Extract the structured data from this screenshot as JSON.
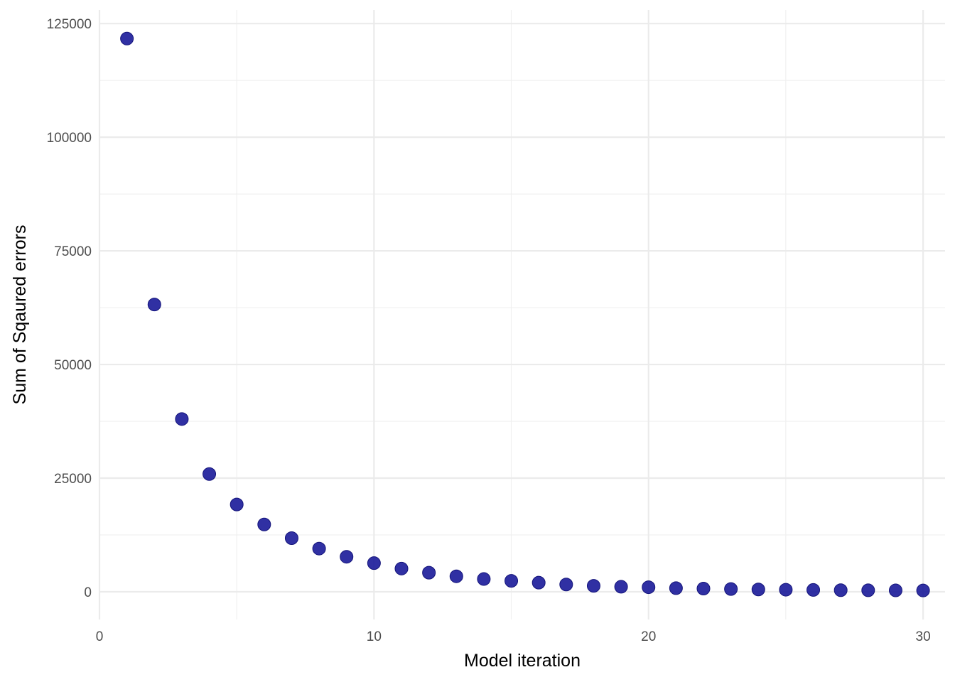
{
  "chart_data": {
    "type": "scatter",
    "title": "",
    "xlabel": "Model iteration",
    "ylabel": "Sum of Sqaured errors",
    "xlim": [
      0,
      30.8
    ],
    "ylim": [
      -6100,
      128000
    ],
    "x_ticks": [
      {
        "value": 0,
        "label": "0"
      },
      {
        "value": 10,
        "label": "10"
      },
      {
        "value": 20,
        "label": "20"
      },
      {
        "value": 30,
        "label": "30"
      }
    ],
    "x_minor_ticks": [
      5,
      15,
      25
    ],
    "y_ticks": [
      {
        "value": 0,
        "label": "0"
      },
      {
        "value": 25000,
        "label": "25000"
      },
      {
        "value": 50000,
        "label": "50000"
      },
      {
        "value": 75000,
        "label": "75000"
      },
      {
        "value": 100000,
        "label": "100000"
      },
      {
        "value": 125000,
        "label": "125000"
      }
    ],
    "y_minor_ticks": [
      12500,
      37500,
      62500,
      87500,
      112500
    ],
    "grid": true,
    "legend": "none",
    "point_color": "#1a1a99",
    "point_outline": "#14147a",
    "point_opacity": 0.9,
    "series": [
      {
        "x": [
          1,
          2,
          3,
          4,
          5,
          6,
          7,
          8,
          9,
          10,
          11,
          12,
          13,
          14,
          15,
          16,
          17,
          18,
          19,
          20,
          21,
          22,
          23,
          24,
          25,
          26,
          27,
          28,
          29,
          30
        ],
        "y": [
          121700,
          63200,
          38000,
          25900,
          19200,
          14800,
          11800,
          9500,
          7700,
          6300,
          5100,
          4200,
          3400,
          2800,
          2400,
          2000,
          1600,
          1300,
          1100,
          1000,
          800,
          700,
          600,
          500,
          450,
          400,
          350,
          320,
          300,
          280
        ]
      }
    ]
  }
}
